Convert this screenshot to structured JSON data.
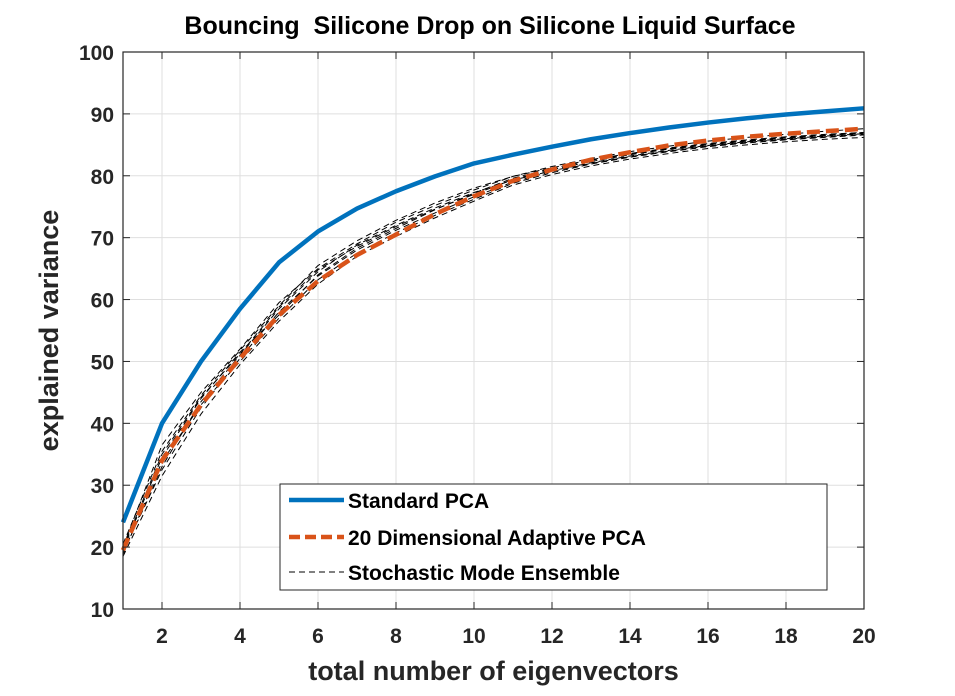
{
  "chart_data": {
    "type": "line",
    "title": "Bouncing  Silicone Drop on Silicone Liquid Surface",
    "xlabel": "total number of eigenvectors",
    "ylabel": "explained variance",
    "xlim": [
      1,
      20
    ],
    "ylim": [
      10,
      100
    ],
    "xticks": [
      2,
      4,
      6,
      8,
      10,
      12,
      14,
      16,
      18,
      20
    ],
    "yticks": [
      10,
      20,
      30,
      40,
      50,
      60,
      70,
      80,
      90,
      100
    ],
    "grid": true,
    "legend_position": "bottom-center",
    "x": [
      1,
      2,
      3,
      4,
      5,
      6,
      7,
      8,
      9,
      10,
      11,
      12,
      13,
      14,
      15,
      16,
      17,
      18,
      19,
      20
    ],
    "series": [
      {
        "name": "Standard PCA",
        "color": "#0072BD",
        "style": "solid",
        "values": [
          24.0,
          40.0,
          50.0,
          58.5,
          66.0,
          71.0,
          74.7,
          77.5,
          79.9,
          82.0,
          83.4,
          84.7,
          85.9,
          86.9,
          87.8,
          88.6,
          89.3,
          89.9,
          90.4,
          90.9
        ]
      },
      {
        "name": "20 Dimensional Adaptive PCA",
        "color": "#D95319",
        "style": "dashed",
        "values": [
          19.5,
          34.0,
          43.0,
          50.5,
          57.5,
          63.0,
          67.2,
          70.5,
          73.8,
          76.7,
          79.2,
          81.0,
          82.6,
          83.8,
          84.9,
          85.7,
          86.3,
          86.8,
          87.2,
          87.6
        ]
      },
      {
        "name": "Stochastic Mode Ensemble",
        "color": "#000000",
        "style": "thin-dashed",
        "members": [
          [
            19.0,
            33.0,
            43.5,
            51.0,
            58.5,
            64.5,
            68.8,
            72.0,
            74.8,
            77.3,
            79.3,
            80.8,
            82.1,
            83.2,
            84.1,
            84.9,
            85.5,
            86.0,
            86.4,
            86.8
          ],
          [
            20.5,
            35.5,
            44.5,
            51.8,
            59.0,
            65.5,
            69.5,
            72.8,
            75.6,
            78.0,
            79.9,
            81.3,
            82.6,
            83.6,
            84.5,
            85.2,
            85.8,
            86.3,
            86.7,
            87.0
          ],
          [
            18.5,
            31.5,
            41.5,
            49.5,
            56.5,
            62.5,
            67.0,
            70.2,
            73.2,
            75.9,
            78.5,
            80.2,
            81.6,
            82.7,
            83.6,
            84.4,
            85.0,
            85.5,
            85.9,
            86.2
          ],
          [
            19.5,
            34.5,
            44.0,
            51.5,
            57.5,
            64.0,
            68.3,
            71.5,
            74.5,
            77.2,
            79.6,
            81.2,
            82.5,
            83.5,
            84.4,
            85.1,
            85.7,
            86.2,
            86.6,
            87.0
          ],
          [
            20.0,
            36.5,
            45.0,
            52.0,
            59.5,
            65.0,
            69.0,
            72.5,
            75.2,
            77.7,
            79.9,
            81.5,
            82.8,
            83.9,
            84.8,
            85.6,
            86.2,
            86.7,
            87.2,
            87.6
          ],
          [
            19.2,
            32.5,
            42.5,
            50.5,
            58.0,
            63.8,
            68.0,
            71.2,
            74.0,
            76.6,
            79.0,
            80.7,
            82.0,
            83.1,
            84.0,
            84.8,
            85.4,
            85.9,
            86.3,
            86.7
          ],
          [
            19.8,
            35.0,
            44.2,
            51.2,
            58.8,
            64.8,
            68.6,
            71.8,
            74.6,
            77.0,
            79.4,
            81.0,
            82.3,
            83.4,
            84.3,
            85.0,
            85.6,
            86.1,
            86.5,
            86.9
          ],
          [
            18.8,
            33.8,
            43.0,
            50.0,
            57.0,
            63.2,
            67.5,
            70.8,
            73.6,
            76.2,
            78.8,
            80.5,
            81.9,
            83.0,
            83.9,
            84.7,
            85.3,
            85.8,
            86.2,
            86.6
          ]
        ]
      }
    ]
  }
}
